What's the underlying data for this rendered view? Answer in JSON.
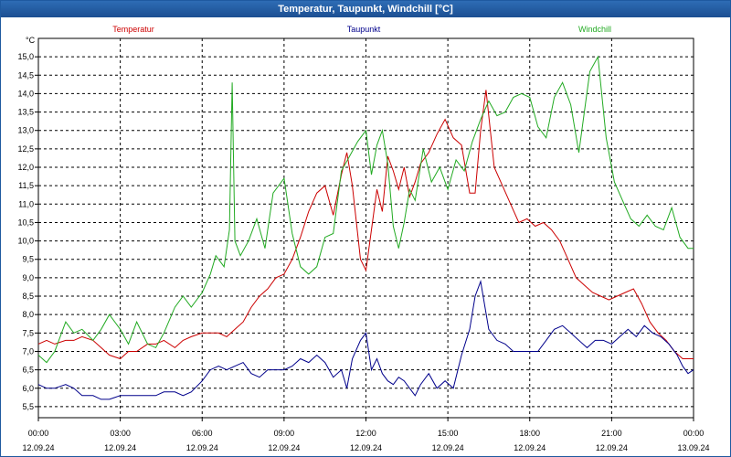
{
  "window": {
    "title": "Temperatur, Taupunkt, Windchill [°C]"
  },
  "chart_data": {
    "type": "line",
    "title": "Temperatur, Taupunkt, Windchill [°C]",
    "ylabel": "°C",
    "xlabel": "",
    "ylim": [
      5.2,
      15.5
    ],
    "xlim": [
      0,
      24
    ],
    "grid": true,
    "y_ticks": [
      "5,5",
      "6,0",
      "6,5",
      "7,0",
      "7,5",
      "8,0",
      "8,5",
      "9,0",
      "9,5",
      "10,0",
      "10,5",
      "11,0",
      "11,5",
      "12,0",
      "12,5",
      "13,0",
      "13,5",
      "14,0",
      "14,5",
      "15,0"
    ],
    "x_ticks": [
      {
        "x": 0,
        "time": "00:00",
        "date": "12.09.24"
      },
      {
        "x": 3,
        "time": "03:00",
        "date": "12.09.24"
      },
      {
        "x": 6,
        "time": "06:00",
        "date": "12.09.24"
      },
      {
        "x": 9,
        "time": "09:00",
        "date": "12.09.24"
      },
      {
        "x": 12,
        "time": "12:00",
        "date": "12.09.24"
      },
      {
        "x": 15,
        "time": "15:00",
        "date": "12.09.24"
      },
      {
        "x": 18,
        "time": "18:00",
        "date": "12.09.24"
      },
      {
        "x": 21,
        "time": "21:00",
        "date": "12.09.24"
      },
      {
        "x": 24,
        "time": "00:00",
        "date": "13.09.24"
      }
    ],
    "series": [
      {
        "name": "Temperatur",
        "color": "#cc0000",
        "points": [
          [
            0,
            7.2
          ],
          [
            0.3,
            7.3
          ],
          [
            0.6,
            7.2
          ],
          [
            1.0,
            7.3
          ],
          [
            1.3,
            7.3
          ],
          [
            1.6,
            7.4
          ],
          [
            2.0,
            7.3
          ],
          [
            2.3,
            7.1
          ],
          [
            2.6,
            6.9
          ],
          [
            3.0,
            6.8
          ],
          [
            3.3,
            7.0
          ],
          [
            3.6,
            7.0
          ],
          [
            4.0,
            7.2
          ],
          [
            4.3,
            7.2
          ],
          [
            4.6,
            7.3
          ],
          [
            5.0,
            7.1
          ],
          [
            5.3,
            7.3
          ],
          [
            5.6,
            7.4
          ],
          [
            6.0,
            7.5
          ],
          [
            6.3,
            7.5
          ],
          [
            6.6,
            7.5
          ],
          [
            6.9,
            7.4
          ],
          [
            7.2,
            7.6
          ],
          [
            7.5,
            7.8
          ],
          [
            7.8,
            8.2
          ],
          [
            8.1,
            8.5
          ],
          [
            8.4,
            8.7
          ],
          [
            8.7,
            9.0
          ],
          [
            9.0,
            9.1
          ],
          [
            9.3,
            9.5
          ],
          [
            9.6,
            10.1
          ],
          [
            9.9,
            10.8
          ],
          [
            10.2,
            11.3
          ],
          [
            10.5,
            11.5
          ],
          [
            10.8,
            10.7
          ],
          [
            11.1,
            11.8
          ],
          [
            11.3,
            12.4
          ],
          [
            11.5,
            11.5
          ],
          [
            11.8,
            9.5
          ],
          [
            12.0,
            9.2
          ],
          [
            12.2,
            10.3
          ],
          [
            12.4,
            11.4
          ],
          [
            12.6,
            10.8
          ],
          [
            12.8,
            12.3
          ],
          [
            13.0,
            11.9
          ],
          [
            13.2,
            11.4
          ],
          [
            13.4,
            12.0
          ],
          [
            13.6,
            11.2
          ],
          [
            13.8,
            11.6
          ],
          [
            14.0,
            12.1
          ],
          [
            14.3,
            12.4
          ],
          [
            14.6,
            12.9
          ],
          [
            14.9,
            13.3
          ],
          [
            15.2,
            12.8
          ],
          [
            15.5,
            12.6
          ],
          [
            15.8,
            11.3
          ],
          [
            16.0,
            11.3
          ],
          [
            16.2,
            13.0
          ],
          [
            16.4,
            14.1
          ],
          [
            16.7,
            12.0
          ],
          [
            17.0,
            11.5
          ],
          [
            17.3,
            11.0
          ],
          [
            17.6,
            10.5
          ],
          [
            17.9,
            10.6
          ],
          [
            18.2,
            10.4
          ],
          [
            18.5,
            10.5
          ],
          [
            18.8,
            10.3
          ],
          [
            19.1,
            10.0
          ],
          [
            19.4,
            9.5
          ],
          [
            19.7,
            9.0
          ],
          [
            20.0,
            8.8
          ],
          [
            20.3,
            8.6
          ],
          [
            20.6,
            8.5
          ],
          [
            20.9,
            8.4
          ],
          [
            21.2,
            8.5
          ],
          [
            21.5,
            8.6
          ],
          [
            21.8,
            8.7
          ],
          [
            22.1,
            8.3
          ],
          [
            22.4,
            7.8
          ],
          [
            22.7,
            7.5
          ],
          [
            23.0,
            7.3
          ],
          [
            23.3,
            7.0
          ],
          [
            23.6,
            6.8
          ],
          [
            24.0,
            6.8
          ]
        ]
      },
      {
        "name": "Taupunkt",
        "color": "#00008b",
        "points": [
          [
            0,
            6.1
          ],
          [
            0.3,
            6.0
          ],
          [
            0.6,
            6.0
          ],
          [
            1.0,
            6.1
          ],
          [
            1.3,
            6.0
          ],
          [
            1.6,
            5.8
          ],
          [
            2.0,
            5.8
          ],
          [
            2.3,
            5.7
          ],
          [
            2.6,
            5.7
          ],
          [
            3.0,
            5.8
          ],
          [
            3.3,
            5.8
          ],
          [
            3.6,
            5.8
          ],
          [
            4.0,
            5.8
          ],
          [
            4.3,
            5.8
          ],
          [
            4.6,
            5.9
          ],
          [
            5.0,
            5.9
          ],
          [
            5.3,
            5.8
          ],
          [
            5.6,
            5.9
          ],
          [
            6.0,
            6.2
          ],
          [
            6.3,
            6.5
          ],
          [
            6.6,
            6.6
          ],
          [
            6.9,
            6.5
          ],
          [
            7.2,
            6.6
          ],
          [
            7.5,
            6.7
          ],
          [
            7.8,
            6.4
          ],
          [
            8.1,
            6.3
          ],
          [
            8.4,
            6.5
          ],
          [
            8.7,
            6.5
          ],
          [
            9.0,
            6.5
          ],
          [
            9.3,
            6.6
          ],
          [
            9.6,
            6.8
          ],
          [
            9.9,
            6.7
          ],
          [
            10.2,
            6.9
          ],
          [
            10.5,
            6.7
          ],
          [
            10.8,
            6.3
          ],
          [
            11.1,
            6.5
          ],
          [
            11.3,
            6.0
          ],
          [
            11.5,
            6.8
          ],
          [
            11.8,
            7.3
          ],
          [
            12.0,
            7.5
          ],
          [
            12.2,
            6.5
          ],
          [
            12.4,
            6.8
          ],
          [
            12.6,
            6.4
          ],
          [
            12.8,
            6.2
          ],
          [
            13.0,
            6.1
          ],
          [
            13.2,
            6.3
          ],
          [
            13.4,
            6.2
          ],
          [
            13.6,
            6.0
          ],
          [
            13.8,
            5.8
          ],
          [
            14.0,
            6.1
          ],
          [
            14.3,
            6.4
          ],
          [
            14.6,
            6.0
          ],
          [
            14.9,
            6.2
          ],
          [
            15.2,
            6.0
          ],
          [
            15.5,
            6.9
          ],
          [
            15.8,
            7.6
          ],
          [
            16.0,
            8.5
          ],
          [
            16.2,
            8.9
          ],
          [
            16.5,
            7.6
          ],
          [
            16.8,
            7.3
          ],
          [
            17.1,
            7.2
          ],
          [
            17.4,
            7.0
          ],
          [
            17.7,
            7.0
          ],
          [
            18.0,
            7.0
          ],
          [
            18.3,
            7.0
          ],
          [
            18.6,
            7.3
          ],
          [
            18.9,
            7.6
          ],
          [
            19.2,
            7.7
          ],
          [
            19.5,
            7.5
          ],
          [
            19.8,
            7.3
          ],
          [
            20.1,
            7.1
          ],
          [
            20.4,
            7.3
          ],
          [
            20.7,
            7.3
          ],
          [
            21.0,
            7.2
          ],
          [
            21.3,
            7.4
          ],
          [
            21.6,
            7.6
          ],
          [
            21.9,
            7.4
          ],
          [
            22.2,
            7.7
          ],
          [
            22.5,
            7.5
          ],
          [
            22.8,
            7.4
          ],
          [
            23.1,
            7.2
          ],
          [
            23.4,
            6.9
          ],
          [
            23.6,
            6.6
          ],
          [
            23.8,
            6.4
          ],
          [
            24.0,
            6.5
          ]
        ]
      },
      {
        "name": "Windchill",
        "color": "#22aa22",
        "points": [
          [
            0,
            6.9
          ],
          [
            0.3,
            6.7
          ],
          [
            0.6,
            7.0
          ],
          [
            1.0,
            7.8
          ],
          [
            1.3,
            7.5
          ],
          [
            1.6,
            7.6
          ],
          [
            2.0,
            7.3
          ],
          [
            2.3,
            7.6
          ],
          [
            2.6,
            8.0
          ],
          [
            3.0,
            7.6
          ],
          [
            3.3,
            7.2
          ],
          [
            3.6,
            7.8
          ],
          [
            4.0,
            7.2
          ],
          [
            4.3,
            7.1
          ],
          [
            4.6,
            7.5
          ],
          [
            5.0,
            8.2
          ],
          [
            5.3,
            8.5
          ],
          [
            5.6,
            8.2
          ],
          [
            6.0,
            8.6
          ],
          [
            6.3,
            9.1
          ],
          [
            6.5,
            9.6
          ],
          [
            6.8,
            9.3
          ],
          [
            7.0,
            10.3
          ],
          [
            7.1,
            14.3
          ],
          [
            7.2,
            10.0
          ],
          [
            7.4,
            9.6
          ],
          [
            7.7,
            10.0
          ],
          [
            8.0,
            10.6
          ],
          [
            8.3,
            9.8
          ],
          [
            8.6,
            11.3
          ],
          [
            9.0,
            11.7
          ],
          [
            9.3,
            10.2
          ],
          [
            9.6,
            9.3
          ],
          [
            9.9,
            9.1
          ],
          [
            10.2,
            9.3
          ],
          [
            10.5,
            10.1
          ],
          [
            10.8,
            10.2
          ],
          [
            11.1,
            11.9
          ],
          [
            11.4,
            12.3
          ],
          [
            11.7,
            12.7
          ],
          [
            12.0,
            13.0
          ],
          [
            12.2,
            11.8
          ],
          [
            12.4,
            12.6
          ],
          [
            12.6,
            13.0
          ],
          [
            12.8,
            12.1
          ],
          [
            13.0,
            10.4
          ],
          [
            13.2,
            9.8
          ],
          [
            13.4,
            10.5
          ],
          [
            13.6,
            11.4
          ],
          [
            13.8,
            11.1
          ],
          [
            14.1,
            12.5
          ],
          [
            14.4,
            11.6
          ],
          [
            14.7,
            12.0
          ],
          [
            15.0,
            11.4
          ],
          [
            15.3,
            12.2
          ],
          [
            15.6,
            11.9
          ],
          [
            15.9,
            12.7
          ],
          [
            16.2,
            13.3
          ],
          [
            16.5,
            13.8
          ],
          [
            16.8,
            13.4
          ],
          [
            17.1,
            13.5
          ],
          [
            17.4,
            13.9
          ],
          [
            17.7,
            14.0
          ],
          [
            18.0,
            13.9
          ],
          [
            18.3,
            13.1
          ],
          [
            18.6,
            12.8
          ],
          [
            18.9,
            13.9
          ],
          [
            19.2,
            14.3
          ],
          [
            19.5,
            13.7
          ],
          [
            19.8,
            12.4
          ],
          [
            20.0,
            13.5
          ],
          [
            20.2,
            14.6
          ],
          [
            20.5,
            15.0
          ],
          [
            20.8,
            12.8
          ],
          [
            21.1,
            11.6
          ],
          [
            21.4,
            11.1
          ],
          [
            21.7,
            10.6
          ],
          [
            22.0,
            10.4
          ],
          [
            22.3,
            10.7
          ],
          [
            22.6,
            10.4
          ],
          [
            22.9,
            10.3
          ],
          [
            23.2,
            10.9
          ],
          [
            23.5,
            10.1
          ],
          [
            23.8,
            9.8
          ],
          [
            24.0,
            9.8
          ]
        ]
      }
    ]
  }
}
